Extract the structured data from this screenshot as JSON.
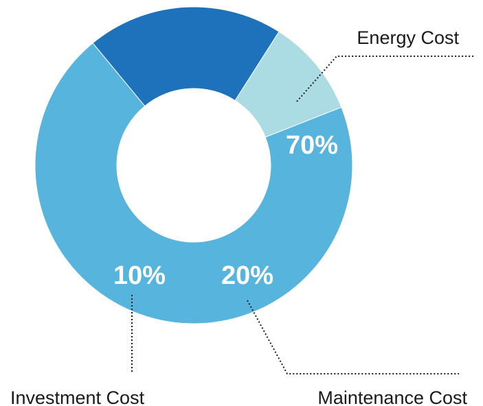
{
  "chart_data": {
    "type": "pie",
    "donut": true,
    "title": "",
    "legend": "none",
    "slices": [
      {
        "label": "Energy Cost",
        "value": 70,
        "value_label": "70%",
        "color": "#56b4dd"
      },
      {
        "label": "Maintenance Cost",
        "value": 20,
        "value_label": "20%",
        "color": "#1e72bb"
      },
      {
        "label": "Investment Cost",
        "value": 10,
        "value_label": "10%",
        "color": "#abdce4"
      }
    ]
  }
}
